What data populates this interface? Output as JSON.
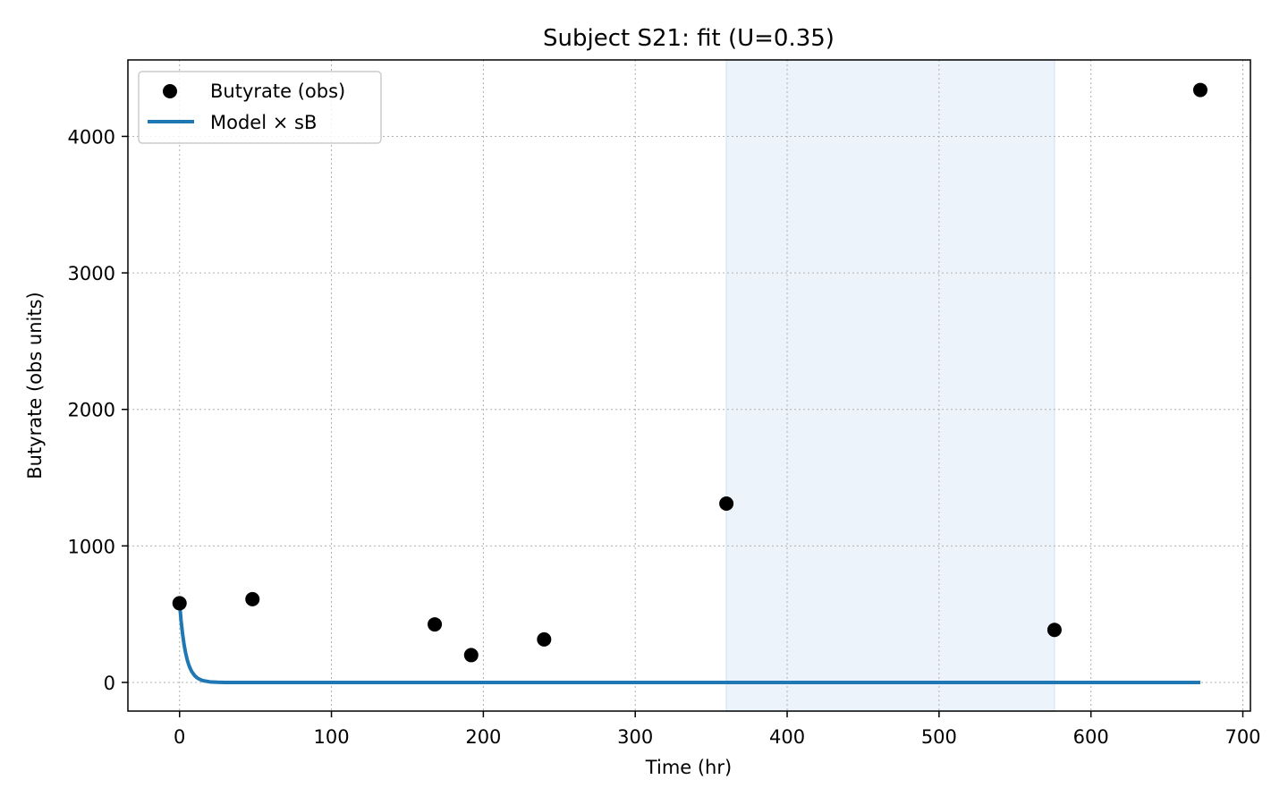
{
  "chart_data": {
    "type": "scatter",
    "title": "Subject S21: fit (U=0.35)",
    "xlabel": "Time (hr)",
    "ylabel": "Butyrate (obs units)",
    "xlim": [
      -34,
      705
    ],
    "ylim": [
      -210,
      4560
    ],
    "x_ticks": [
      0,
      100,
      200,
      300,
      400,
      500,
      600,
      700
    ],
    "y_ticks": [
      0,
      1000,
      2000,
      3000,
      4000
    ],
    "grid": true,
    "legend_position": "top-left",
    "shaded_region": {
      "x_start": 360,
      "x_end": 576,
      "color": "#dce9f5"
    },
    "series": [
      {
        "name": "Butyrate (obs)",
        "kind": "scatter",
        "color": "#000000",
        "points": [
          {
            "x": 0,
            "y": 580
          },
          {
            "x": 48,
            "y": 610
          },
          {
            "x": 168,
            "y": 425
          },
          {
            "x": 192,
            "y": 200
          },
          {
            "x": 240,
            "y": 315
          },
          {
            "x": 360,
            "y": 1310
          },
          {
            "x": 576,
            "y": 385
          },
          {
            "x": 672,
            "y": 4340
          }
        ]
      },
      {
        "name": "Model × sB",
        "kind": "line",
        "color": "#1f77b4",
        "points": [
          {
            "x": 0,
            "y": 580
          },
          {
            "x": 1,
            "y": 453
          },
          {
            "x": 2,
            "y": 354
          },
          {
            "x": 3,
            "y": 276
          },
          {
            "x": 4,
            "y": 216
          },
          {
            "x": 5,
            "y": 168
          },
          {
            "x": 6,
            "y": 131
          },
          {
            "x": 7,
            "y": 103
          },
          {
            "x": 8,
            "y": 80
          },
          {
            "x": 10,
            "y": 49
          },
          {
            "x": 12,
            "y": 30
          },
          {
            "x": 15,
            "y": 14
          },
          {
            "x": 20,
            "y": 4
          },
          {
            "x": 25,
            "y": 1
          },
          {
            "x": 30,
            "y": 0
          },
          {
            "x": 672,
            "y": 0
          }
        ]
      }
    ]
  }
}
